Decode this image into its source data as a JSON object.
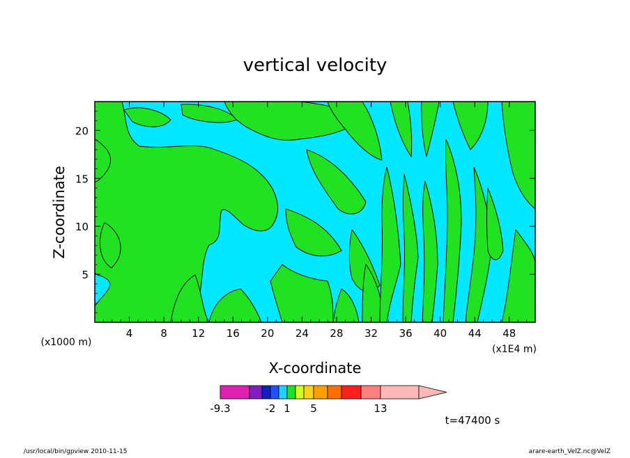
{
  "chart_data": {
    "type": "heatmap",
    "title": "vertical velocity",
    "xlabel": "X-coordinate",
    "ylabel": "Z-coordinate",
    "x_unit_label": "(x1E4 m)",
    "y_unit_label": "(x1000 m)",
    "xlim": [
      0,
      51
    ],
    "ylim": [
      0,
      23
    ],
    "x_ticks": [
      4,
      8,
      12,
      16,
      20,
      24,
      28,
      32,
      36,
      40,
      44,
      48
    ],
    "y_ticks": [
      5,
      10,
      15,
      20
    ],
    "colorbar": {
      "colors": [
        "#e020b0",
        "#8020c0",
        "#1020c0",
        "#2050ff",
        "#20d0ff",
        "#20e020",
        "#d0ff20",
        "#ffd020",
        "#ffa000",
        "#ff7000",
        "#ff2020",
        "#ff8080",
        "#ffb8b8"
      ],
      "tick_labels": [
        "-9.3",
        "-2",
        "1",
        "5",
        "13"
      ],
      "tick_index": [
        0,
        3,
        5,
        8,
        12
      ],
      "visible_colors_in_plot": [
        "#00e8ff",
        "#22e022"
      ]
    },
    "time_label": "t=47400 s"
  },
  "footer": {
    "left": "/usr/local/bin/gpview   2010-11-15",
    "right": "arare-earth_VelZ.nc@VelZ"
  }
}
